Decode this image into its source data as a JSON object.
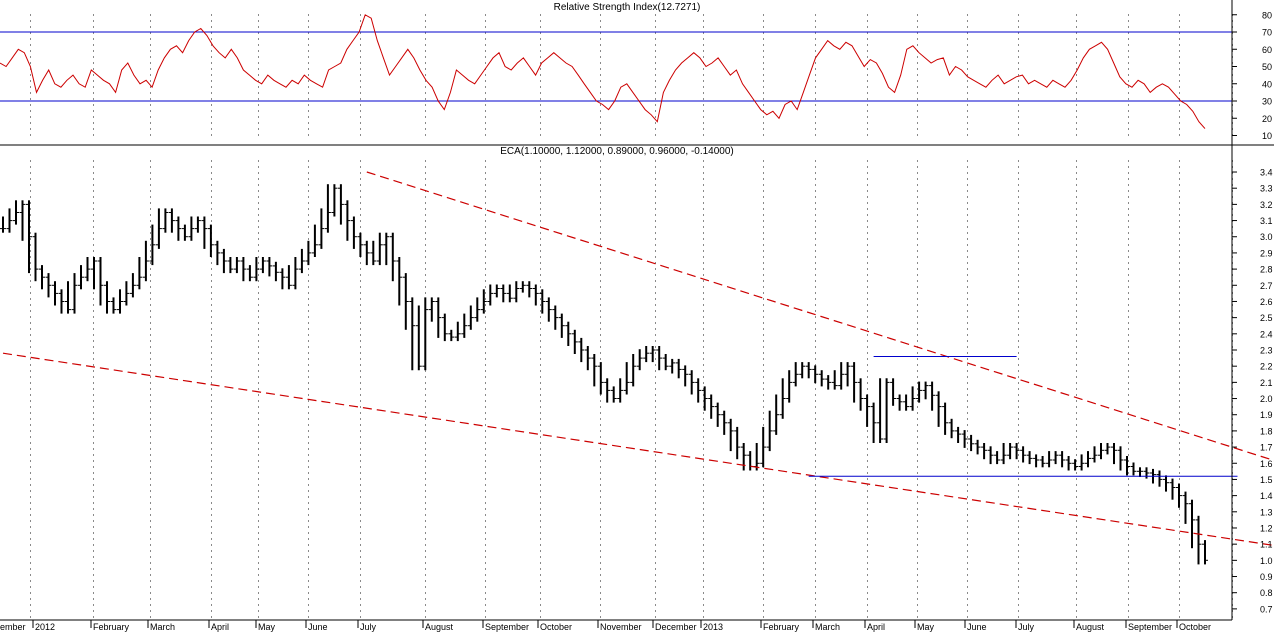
{
  "chart_data": [
    {
      "type": "line",
      "title": "Relative Strength Index(12.7271)",
      "ylim": [
        5,
        90
      ],
      "yticks": [
        "10",
        "20",
        "30",
        "40",
        "50",
        "60",
        "70",
        "80"
      ],
      "reference_lines": [
        30,
        70
      ],
      "colors": {
        "series": "#cc0000",
        "reference": "#0000cc"
      },
      "series": [
        {
          "values": [
            52,
            50,
            55,
            60,
            58,
            50,
            35,
            42,
            48,
            40,
            38,
            42,
            45,
            40,
            38,
            48,
            45,
            42,
            40,
            35,
            48,
            52,
            45,
            40,
            42,
            38,
            48,
            55,
            60,
            62,
            58,
            65,
            70,
            72,
            68,
            62,
            58,
            55,
            60,
            55,
            48,
            45,
            42,
            40,
            45,
            42,
            40,
            38,
            42,
            40,
            45,
            42,
            40,
            38,
            48,
            50,
            52,
            60,
            65,
            70,
            80,
            78,
            65,
            55,
            45,
            50,
            55,
            60,
            55,
            48,
            42,
            38,
            30,
            25,
            35,
            48,
            45,
            42,
            40,
            45,
            50,
            55,
            58,
            50,
            48,
            52,
            55,
            50,
            45,
            52,
            55,
            58,
            55,
            52,
            50,
            45,
            40,
            35,
            30,
            28,
            25,
            30,
            38,
            40,
            35,
            30,
            25,
            22,
            18,
            35,
            42,
            48,
            52,
            55,
            58,
            55,
            50,
            52,
            55,
            50,
            45,
            48,
            40,
            35,
            30,
            25,
            22,
            24,
            20,
            28,
            30,
            25,
            35,
            45,
            55,
            60,
            65,
            62,
            60,
            64,
            62,
            56,
            50,
            54,
            52,
            46,
            38,
            35,
            45,
            60,
            62,
            58,
            55,
            52,
            54,
            55,
            45,
            50,
            48,
            44,
            42,
            40,
            38,
            42,
            45,
            40,
            42,
            44,
            45,
            40,
            42,
            40,
            38,
            42,
            40,
            38,
            42,
            48,
            55,
            60,
            62,
            64,
            60,
            52,
            44,
            40,
            38,
            42,
            40,
            35,
            38,
            40,
            38,
            34,
            30,
            28,
            24,
            18,
            14
          ]
        }
      ]
    },
    {
      "type": "bar",
      "title": "ECA(1.10000, 1.12000, 0.89000, 0.96000, -0.14000)",
      "ylim": [
        0.65,
        3.45
      ],
      "yticks": [
        "0.7",
        "0.8",
        "0.9",
        "1.0",
        "1.1",
        "1.2",
        "1.3",
        "1.4",
        "1.5",
        "1.6",
        "1.7",
        "1.8",
        "1.9",
        "2.0",
        "2.1",
        "2.2",
        "2.3",
        "2.4",
        "2.5",
        "2.6",
        "2.7",
        "2.8",
        "2.9",
        "3.0",
        "3.1",
        "3.2",
        "3.3",
        "3.4"
      ],
      "x_tick_labels": [
        "ember",
        "2012",
        "February",
        "March",
        "April",
        "May",
        "June",
        "July",
        "August",
        "September",
        "October",
        "November",
        "December",
        "2013",
        "February",
        "March",
        "April",
        "May",
        "June",
        "July",
        "August",
        "September",
        "October"
      ],
      "colors": {
        "bars": "#000000",
        "trendlines": "#cc0000",
        "levels": "#0000cc"
      },
      "series": [
        {
          "values": [
            3.05,
            3.1,
            3.15,
            3.2,
            3.0,
            2.8,
            2.75,
            2.7,
            2.65,
            2.6,
            2.55,
            2.7,
            2.75,
            2.8,
            2.85,
            2.7,
            2.6,
            2.55,
            2.6,
            2.65,
            2.7,
            2.75,
            2.85,
            2.95,
            3.05,
            3.15,
            3.1,
            3.05,
            3.0,
            3.05,
            3.1,
            3.05,
            2.95,
            2.9,
            2.85,
            2.8,
            2.85,
            2.8,
            2.75,
            2.8,
            2.85,
            2.82,
            2.78,
            2.75,
            2.7,
            2.8,
            2.85,
            2.9,
            2.95,
            3.05,
            3.15,
            3.3,
            3.2,
            3.1,
            3.0,
            2.95,
            2.9,
            2.85,
            2.95,
            3.0,
            2.85,
            2.75,
            2.6,
            2.45,
            2.2,
            2.55,
            2.6,
            2.5,
            2.4,
            2.38,
            2.4,
            2.45,
            2.5,
            2.55,
            2.6,
            2.65,
            2.68,
            2.65,
            2.62,
            2.68,
            2.7,
            2.68,
            2.65,
            2.6,
            2.55,
            2.5,
            2.45,
            2.4,
            2.35,
            2.3,
            2.25,
            2.2,
            2.1,
            2.05,
            2.0,
            2.05,
            2.1,
            2.2,
            2.25,
            2.28,
            2.3,
            2.25,
            2.2,
            2.22,
            2.18,
            2.15,
            2.1,
            2.05,
            2.0,
            1.95,
            1.9,
            1.85,
            1.8,
            1.7,
            1.65,
            1.58,
            1.6,
            1.7,
            1.8,
            1.9,
            2.0,
            2.1,
            2.15,
            2.2,
            2.18,
            2.15,
            2.12,
            2.1,
            2.08,
            2.15,
            2.2,
            2.1,
            2.0,
            1.95,
            1.85,
            1.75,
            2.1,
            2.0,
            1.98,
            1.95,
            2.0,
            2.05,
            2.08,
            2.02,
            1.95,
            1.85,
            1.8,
            1.78,
            1.75,
            1.72,
            1.7,
            1.68,
            1.65,
            1.62,
            1.65,
            1.7,
            1.68,
            1.65,
            1.63,
            1.62,
            1.6,
            1.62,
            1.65,
            1.62,
            1.6,
            1.58,
            1.6,
            1.63,
            1.65,
            1.68,
            1.7,
            1.68,
            1.62,
            1.58,
            1.55,
            1.55,
            1.54,
            1.53,
            1.5,
            1.48,
            1.45,
            1.4,
            1.35,
            1.25,
            1.1,
            1.0
          ]
        }
      ],
      "trendlines": [
        {
          "from": [
            0,
            2.28
          ],
          "to": [
            197,
            1.06
          ]
        },
        {
          "from": [
            56,
            3.4
          ],
          "to": [
            197,
            1.55
          ]
        }
      ],
      "levels": [
        {
          "value": 2.26,
          "from": 134,
          "to": 156
        },
        {
          "value": 1.52,
          "from": 124,
          "to": 190
        }
      ]
    }
  ]
}
